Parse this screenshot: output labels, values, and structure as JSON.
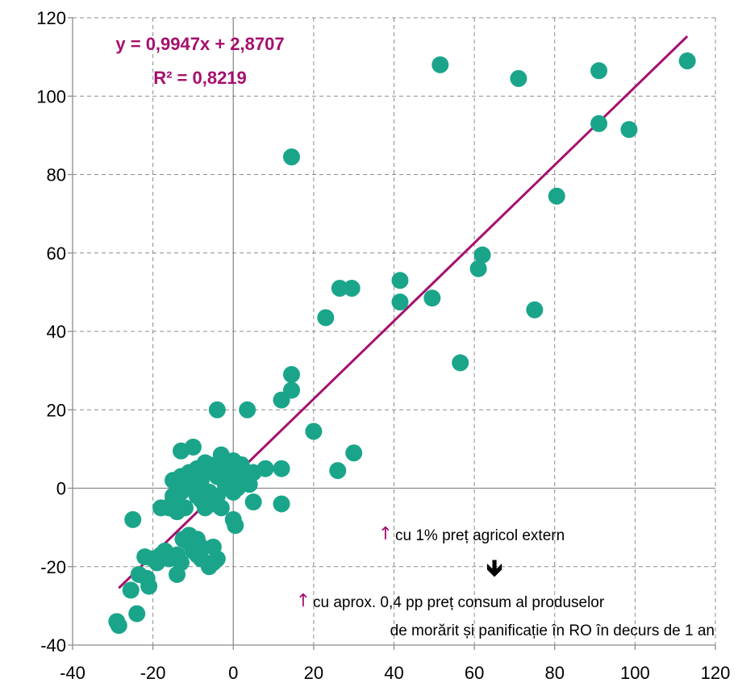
{
  "chart_data": {
    "type": "scatter",
    "xlim": [
      -40,
      120
    ],
    "ylim": [
      -40,
      120
    ],
    "x_ticks": [
      -40,
      -20,
      0,
      20,
      40,
      60,
      80,
      100,
      120
    ],
    "y_ticks": [
      -40,
      -20,
      0,
      20,
      40,
      60,
      80,
      100,
      120
    ],
    "x_tick_labels": [
      "-40",
      "-20",
      "0",
      "20",
      "40",
      "60",
      "80",
      "100",
      "120"
    ],
    "y_tick_labels": [
      "-40",
      "-20",
      "0",
      "20",
      "40",
      "60",
      "80",
      "100",
      "120"
    ],
    "grid": true,
    "series": [
      {
        "color": "#1aa58a",
        "points": [
          [
            -29,
            -34
          ],
          [
            -28.5,
            -35
          ],
          [
            -25.5,
            -26
          ],
          [
            -24,
            -32
          ],
          [
            -23.5,
            -22
          ],
          [
            -22,
            -17.5
          ],
          [
            -21.5,
            -23
          ],
          [
            -21,
            -25
          ],
          [
            -25,
            -8
          ],
          [
            -20,
            -18
          ],
          [
            -19,
            -19
          ],
          [
            -18,
            -17
          ],
          [
            -17,
            -16
          ],
          [
            -16,
            -18
          ],
          [
            -14,
            -17
          ],
          [
            -14,
            -22
          ],
          [
            -13,
            -19
          ],
          [
            -12.5,
            -13
          ],
          [
            -11,
            -14
          ],
          [
            -10,
            -16
          ],
          [
            -9,
            -17
          ],
          [
            -8,
            -15
          ],
          [
            -11,
            -12
          ],
          [
            -9,
            -13
          ],
          [
            -8,
            -18
          ],
          [
            -6,
            -20
          ],
          [
            -5,
            -19
          ],
          [
            -4,
            -18
          ],
          [
            -5,
            -15
          ],
          [
            -18,
            -5
          ],
          [
            -16,
            -5
          ],
          [
            -15,
            -3
          ],
          [
            -14,
            -6
          ],
          [
            -15,
            -2
          ],
          [
            -13,
            -1
          ],
          [
            -12,
            -5
          ],
          [
            -11,
            0
          ],
          [
            -10,
            1
          ],
          [
            -9,
            -2
          ],
          [
            -8,
            -3
          ],
          [
            -7,
            -5
          ],
          [
            -6,
            -1
          ],
          [
            -5,
            -4
          ],
          [
            -4,
            -2
          ],
          [
            -3,
            -5
          ],
          [
            -2,
            1
          ],
          [
            -1,
            2
          ],
          [
            0,
            -1
          ],
          [
            1,
            0
          ],
          [
            2,
            1
          ],
          [
            -15,
            2
          ],
          [
            -13,
            3
          ],
          [
            -12,
            1
          ],
          [
            -11,
            4
          ],
          [
            -10,
            3
          ],
          [
            -9,
            5
          ],
          [
            -8,
            2
          ],
          [
            -7,
            4
          ],
          [
            -6,
            6
          ],
          [
            -5,
            5
          ],
          [
            -4,
            3
          ],
          [
            -3,
            4
          ],
          [
            -2,
            6
          ],
          [
            -1,
            5
          ],
          [
            0,
            7
          ],
          [
            1,
            4
          ],
          [
            2,
            6
          ],
          [
            3,
            2
          ],
          [
            4,
            1
          ],
          [
            5,
            4
          ],
          [
            -13,
            9.5
          ],
          [
            -10,
            10.5
          ],
          [
            -7,
            6.5
          ],
          [
            -3,
            8.5
          ],
          [
            0,
            -8
          ],
          [
            0.5,
            -9.5
          ],
          [
            5,
            -3.5
          ],
          [
            8,
            5
          ],
          [
            12,
            5
          ],
          [
            12,
            -4
          ],
          [
            -4,
            20
          ],
          [
            3.5,
            20
          ],
          [
            12,
            22.5
          ],
          [
            14.5,
            25
          ],
          [
            14.5,
            29
          ],
          [
            20,
            14.5
          ],
          [
            26,
            4.5
          ],
          [
            30,
            9
          ],
          [
            14.5,
            84.5
          ],
          [
            23,
            43.5
          ],
          [
            26.5,
            51
          ],
          [
            29.5,
            51
          ],
          [
            41.5,
            53
          ],
          [
            41.5,
            47.5
          ],
          [
            49.5,
            48.5
          ],
          [
            51.5,
            108
          ],
          [
            56.5,
            32
          ],
          [
            61,
            56
          ],
          [
            62,
            59.5
          ],
          [
            75,
            45.5
          ],
          [
            71,
            104.5
          ],
          [
            80.5,
            74.5
          ],
          [
            91,
            93
          ],
          [
            91,
            106.5
          ],
          [
            98.5,
            91.5
          ],
          [
            113,
            109
          ]
        ]
      }
    ],
    "trendline": {
      "slope": 0.9947,
      "intercept": 2.8707,
      "x_start": -28.5,
      "x_end": 113,
      "color": "#a5106e"
    }
  },
  "annotations": {
    "equation": "y = 0,9947x + 2,8707",
    "r_squared": "R² = 0,8219",
    "note_arrow": "↑",
    "note_line1": "cu 1% preț agricol extern",
    "down_arrow": "🡻",
    "note_line2": "cu aprox. 0,4 pp preț consum al produselor",
    "note_line3": "de morărit și panificație în RO în decurs de 1 an"
  }
}
